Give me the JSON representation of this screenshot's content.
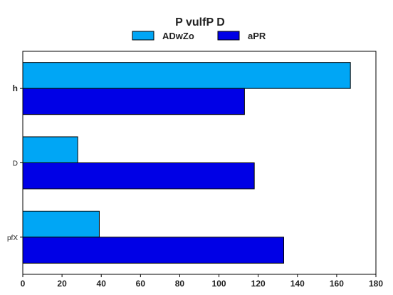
{
  "chart_data": {
    "type": "bar",
    "orientation": "horizontal",
    "title": "P  vulfP D",
    "categories": [
      "h",
      "D",
      "pfX"
    ],
    "category_bold": [
      true,
      false,
      false
    ],
    "series": [
      {
        "name": "ADwZo",
        "color": "#00a6f5",
        "values": [
          167,
          28,
          39
        ]
      },
      {
        "name": "aPR",
        "color": "#0000e6",
        "values": [
          113,
          118,
          133
        ]
      }
    ],
    "xlim": [
      0,
      180
    ],
    "xticks": [
      0,
      20,
      40,
      60,
      80,
      100,
      120,
      140,
      160,
      180
    ],
    "xlabel": "",
    "ylabel": "",
    "grid": false,
    "legend_position": "top-center"
  }
}
